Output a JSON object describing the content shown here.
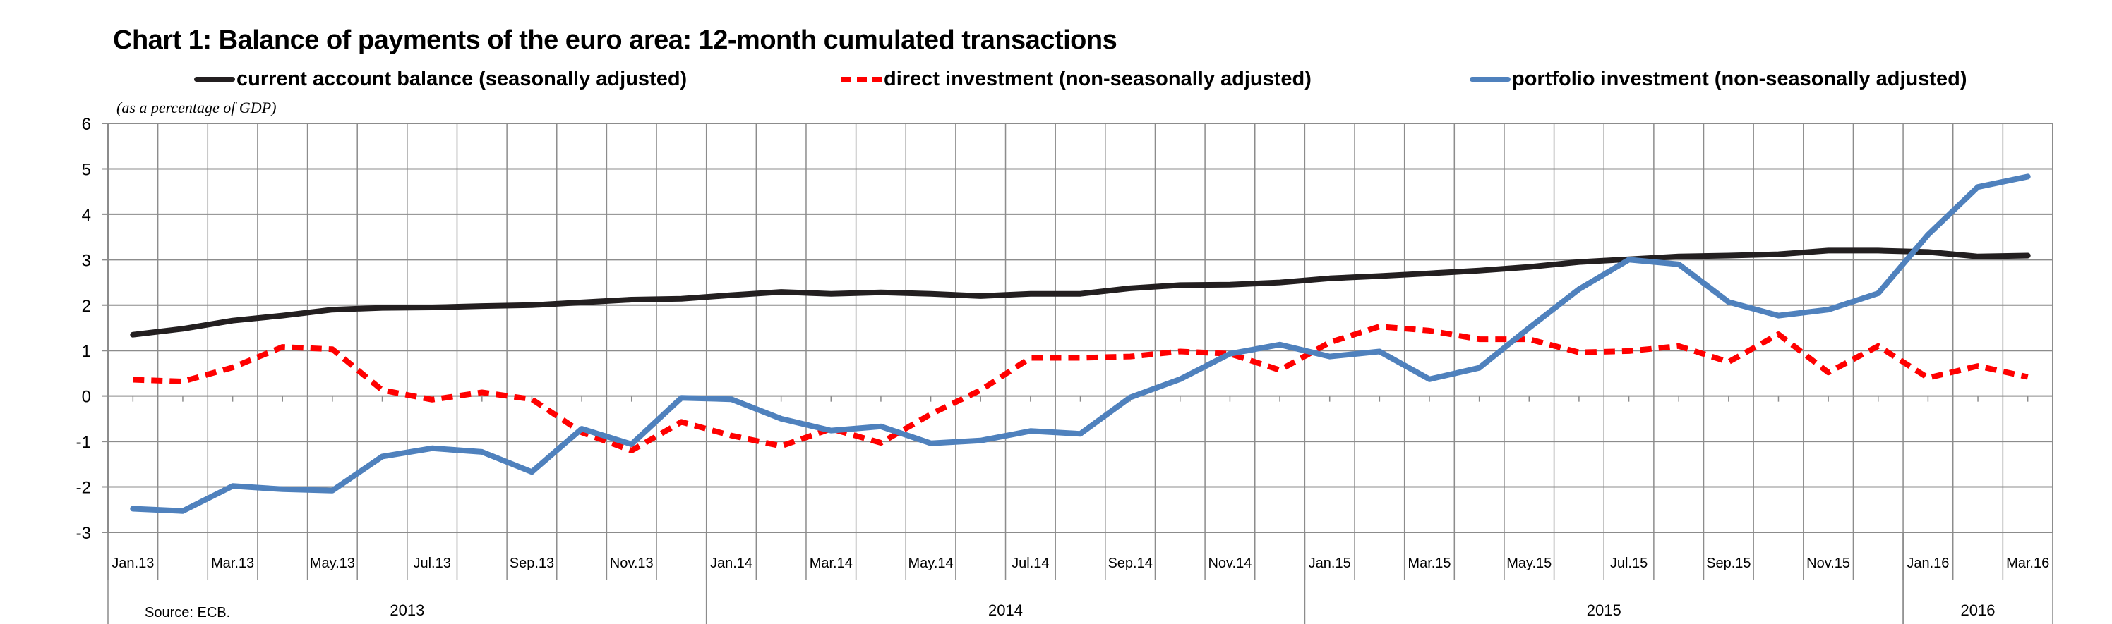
{
  "chart_data": {
    "type": "line",
    "title": "Chart 1: Balance of payments of the euro area: 12-month cumulated transactions",
    "ylabel": "(as a percentage of GDP)",
    "xlabel": "",
    "ylim": [
      -3,
      6
    ],
    "yticks": [
      6,
      5,
      4,
      3,
      2,
      1,
      0,
      -1,
      -2,
      -3
    ],
    "grid": true,
    "legend_position": "top",
    "source": "Source: ECB.",
    "x": [
      "Jan.13",
      "Feb.13",
      "Mar.13",
      "Apr.13",
      "May.13",
      "Jun.13",
      "Jul.13",
      "Aug.13",
      "Sep.13",
      "Oct.13",
      "Nov.13",
      "Dec.13",
      "Jan.14",
      "Feb.14",
      "Mar.14",
      "Apr.14",
      "May.14",
      "Jun.14",
      "Jul.14",
      "Aug.14",
      "Sep.14",
      "Oct.14",
      "Nov.14",
      "Dec.14",
      "Jan.15",
      "Feb.15",
      "Mar.15",
      "Apr.15",
      "May.15",
      "Jun.15",
      "Jul.15",
      "Aug.15",
      "Sep.15",
      "Oct.15",
      "Nov.15",
      "Dec.15",
      "Jan.16",
      "Feb.16",
      "Mar.16"
    ],
    "xtick_labels": [
      "Jan.13",
      "Mar.13",
      "May.13",
      "Jul.13",
      "Sep.13",
      "Nov.13",
      "Jan.14",
      "Mar.14",
      "May.14",
      "Jul.14",
      "Sep.14",
      "Nov.14",
      "Jan.15",
      "Mar.15",
      "May.15",
      "Jul.15",
      "Sep.15",
      "Nov.15",
      "Jan.16",
      "Mar.16"
    ],
    "year_groups": [
      {
        "label": "2013",
        "start": 0,
        "count": 12
      },
      {
        "label": "2014",
        "start": 12,
        "count": 12
      },
      {
        "label": "2015",
        "start": 24,
        "count": 12
      },
      {
        "label": "2016",
        "start": 36,
        "count": 3
      }
    ],
    "series": [
      {
        "name": "current account balance (seasonally adjusted)",
        "color": "#231f20",
        "style": "solid",
        "values": [
          1.35,
          1.48,
          1.66,
          1.77,
          1.9,
          1.94,
          1.95,
          1.98,
          2.0,
          2.06,
          2.12,
          2.14,
          2.22,
          2.29,
          2.25,
          2.28,
          2.25,
          2.2,
          2.25,
          2.25,
          2.37,
          2.44,
          2.45,
          2.5,
          2.59,
          2.64,
          2.7,
          2.76,
          2.84,
          2.95,
          3.01,
          3.07,
          3.09,
          3.12,
          3.2,
          3.2,
          3.17,
          3.07,
          3.09
        ]
      },
      {
        "name": "direct investment (non-seasonally adjusted)",
        "color": "#ff0000",
        "style": "dashed",
        "values": [
          0.36,
          0.32,
          0.63,
          1.08,
          1.03,
          0.13,
          -0.08,
          0.08,
          -0.07,
          -0.8,
          -1.2,
          -0.57,
          -0.87,
          -1.1,
          -0.72,
          -1.03,
          -0.4,
          0.13,
          0.84,
          0.84,
          0.87,
          0.98,
          0.93,
          0.57,
          1.18,
          1.53,
          1.44,
          1.25,
          1.25,
          0.96,
          0.99,
          1.1,
          0.75,
          1.36,
          0.52,
          1.1,
          0.4,
          0.66,
          0.42
        ]
      },
      {
        "name": "portfolio investment (non-seasonally adjusted)",
        "color": "#4f81bd",
        "style": "solid",
        "values": [
          -2.48,
          -2.53,
          -1.98,
          -2.05,
          -2.08,
          -1.33,
          -1.15,
          -1.23,
          -1.67,
          -0.72,
          -1.06,
          -0.04,
          -0.07,
          -0.5,
          -0.76,
          -0.67,
          -1.04,
          -0.98,
          -0.77,
          -0.83,
          -0.03,
          0.37,
          0.93,
          1.13,
          0.87,
          0.98,
          0.37,
          0.62,
          1.5,
          2.35,
          3.0,
          2.9,
          2.07,
          1.77,
          1.9,
          2.26,
          3.55,
          4.6,
          4.83
        ]
      }
    ]
  }
}
